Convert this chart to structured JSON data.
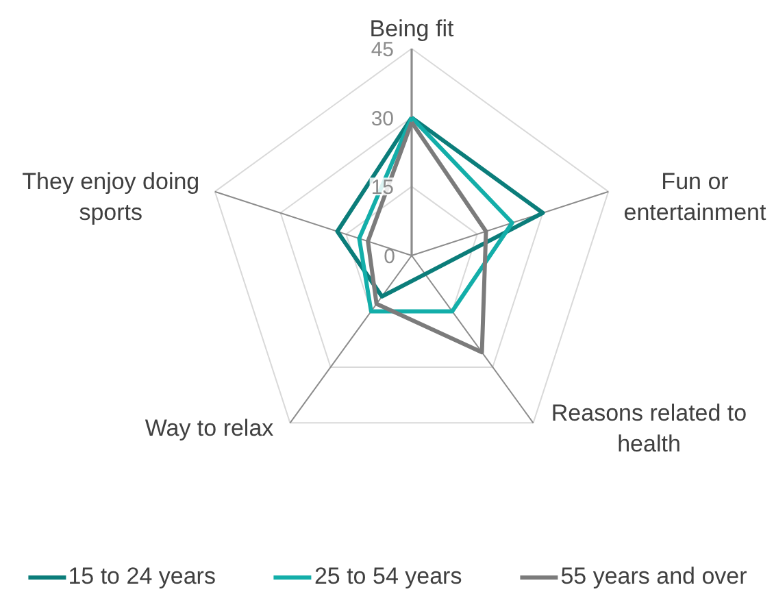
{
  "chart_data": {
    "type": "radar",
    "categories": [
      "Being fit",
      "Fun or entertainment",
      "Reasons related to health",
      "Way to relax",
      "They enjoy doing sports"
    ],
    "ylim": [
      0,
      45
    ],
    "yticks": [
      0,
      15,
      30,
      45
    ],
    "grid": true,
    "legend": "bottom",
    "series": [
      {
        "name": "15 to 24 years",
        "color": "#0b7d7a",
        "values": [
          30,
          30,
          5,
          11,
          17
        ]
      },
      {
        "name": "25 to 54 years",
        "color": "#13aea9",
        "values": [
          30,
          23,
          15,
          15,
          12
        ]
      },
      {
        "name": "55 years and over",
        "color": "#7b7b7b",
        "values": [
          29,
          17,
          26,
          13,
          10
        ]
      }
    ]
  }
}
